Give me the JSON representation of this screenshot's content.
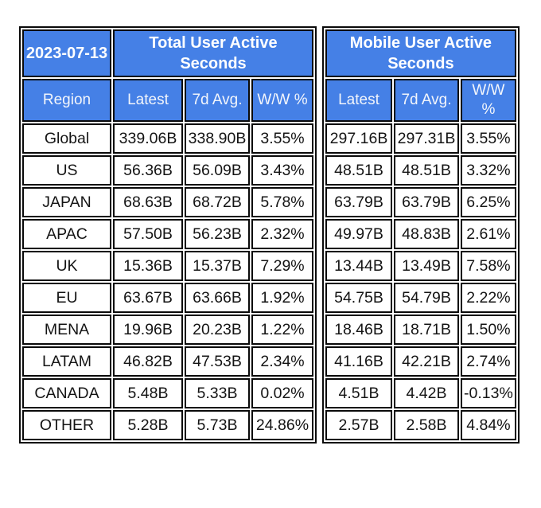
{
  "report_date": "2023-07-13",
  "colors": {
    "header_bg": "#4580e6",
    "header_text": "#ffffff",
    "border": "#0a0a0a",
    "cell_text": "#141414",
    "background": "#ffffff"
  },
  "chart_data": {
    "type": "table",
    "date": "2023-07-13",
    "region_header": "Region",
    "column_groups": [
      {
        "title": "Total User Active Seconds",
        "columns": [
          "Latest",
          "7d Avg.",
          "W/W %"
        ]
      },
      {
        "title": "Mobile User Active Seconds",
        "columns": [
          "Latest",
          "7d Avg.",
          "W/W %"
        ]
      }
    ],
    "rows": [
      {
        "region": "Global",
        "total": [
          "339.06B",
          "338.90B",
          "3.55%"
        ],
        "mobile": [
          "297.16B",
          "297.31B",
          "3.55%"
        ]
      },
      {
        "region": "US",
        "total": [
          "56.36B",
          "56.09B",
          "3.43%"
        ],
        "mobile": [
          "48.51B",
          "48.51B",
          "3.32%"
        ]
      },
      {
        "region": "JAPAN",
        "total": [
          "68.63B",
          "68.72B",
          "5.78%"
        ],
        "mobile": [
          "63.79B",
          "63.79B",
          "6.25%"
        ]
      },
      {
        "region": "APAC",
        "total": [
          "57.50B",
          "56.23B",
          "2.32%"
        ],
        "mobile": [
          "49.97B",
          "48.83B",
          "2.61%"
        ]
      },
      {
        "region": "UK",
        "total": [
          "15.36B",
          "15.37B",
          "7.29%"
        ],
        "mobile": [
          "13.44B",
          "13.49B",
          "7.58%"
        ]
      },
      {
        "region": "EU",
        "total": [
          "63.67B",
          "63.66B",
          "1.92%"
        ],
        "mobile": [
          "54.75B",
          "54.79B",
          "2.22%"
        ]
      },
      {
        "region": "MENA",
        "total": [
          "19.96B",
          "20.23B",
          "1.22%"
        ],
        "mobile": [
          "18.46B",
          "18.71B",
          "1.50%"
        ]
      },
      {
        "region": "LATAM",
        "total": [
          "46.82B",
          "47.53B",
          "2.34%"
        ],
        "mobile": [
          "41.16B",
          "42.21B",
          "2.74%"
        ]
      },
      {
        "region": "CANADA",
        "total": [
          "5.48B",
          "5.33B",
          "0.02%"
        ],
        "mobile": [
          "4.51B",
          "4.42B",
          "-0.13%"
        ]
      },
      {
        "region": "OTHER",
        "total": [
          "5.28B",
          "5.73B",
          "24.86%"
        ],
        "mobile": [
          "2.57B",
          "2.58B",
          "4.84%"
        ]
      }
    ]
  }
}
